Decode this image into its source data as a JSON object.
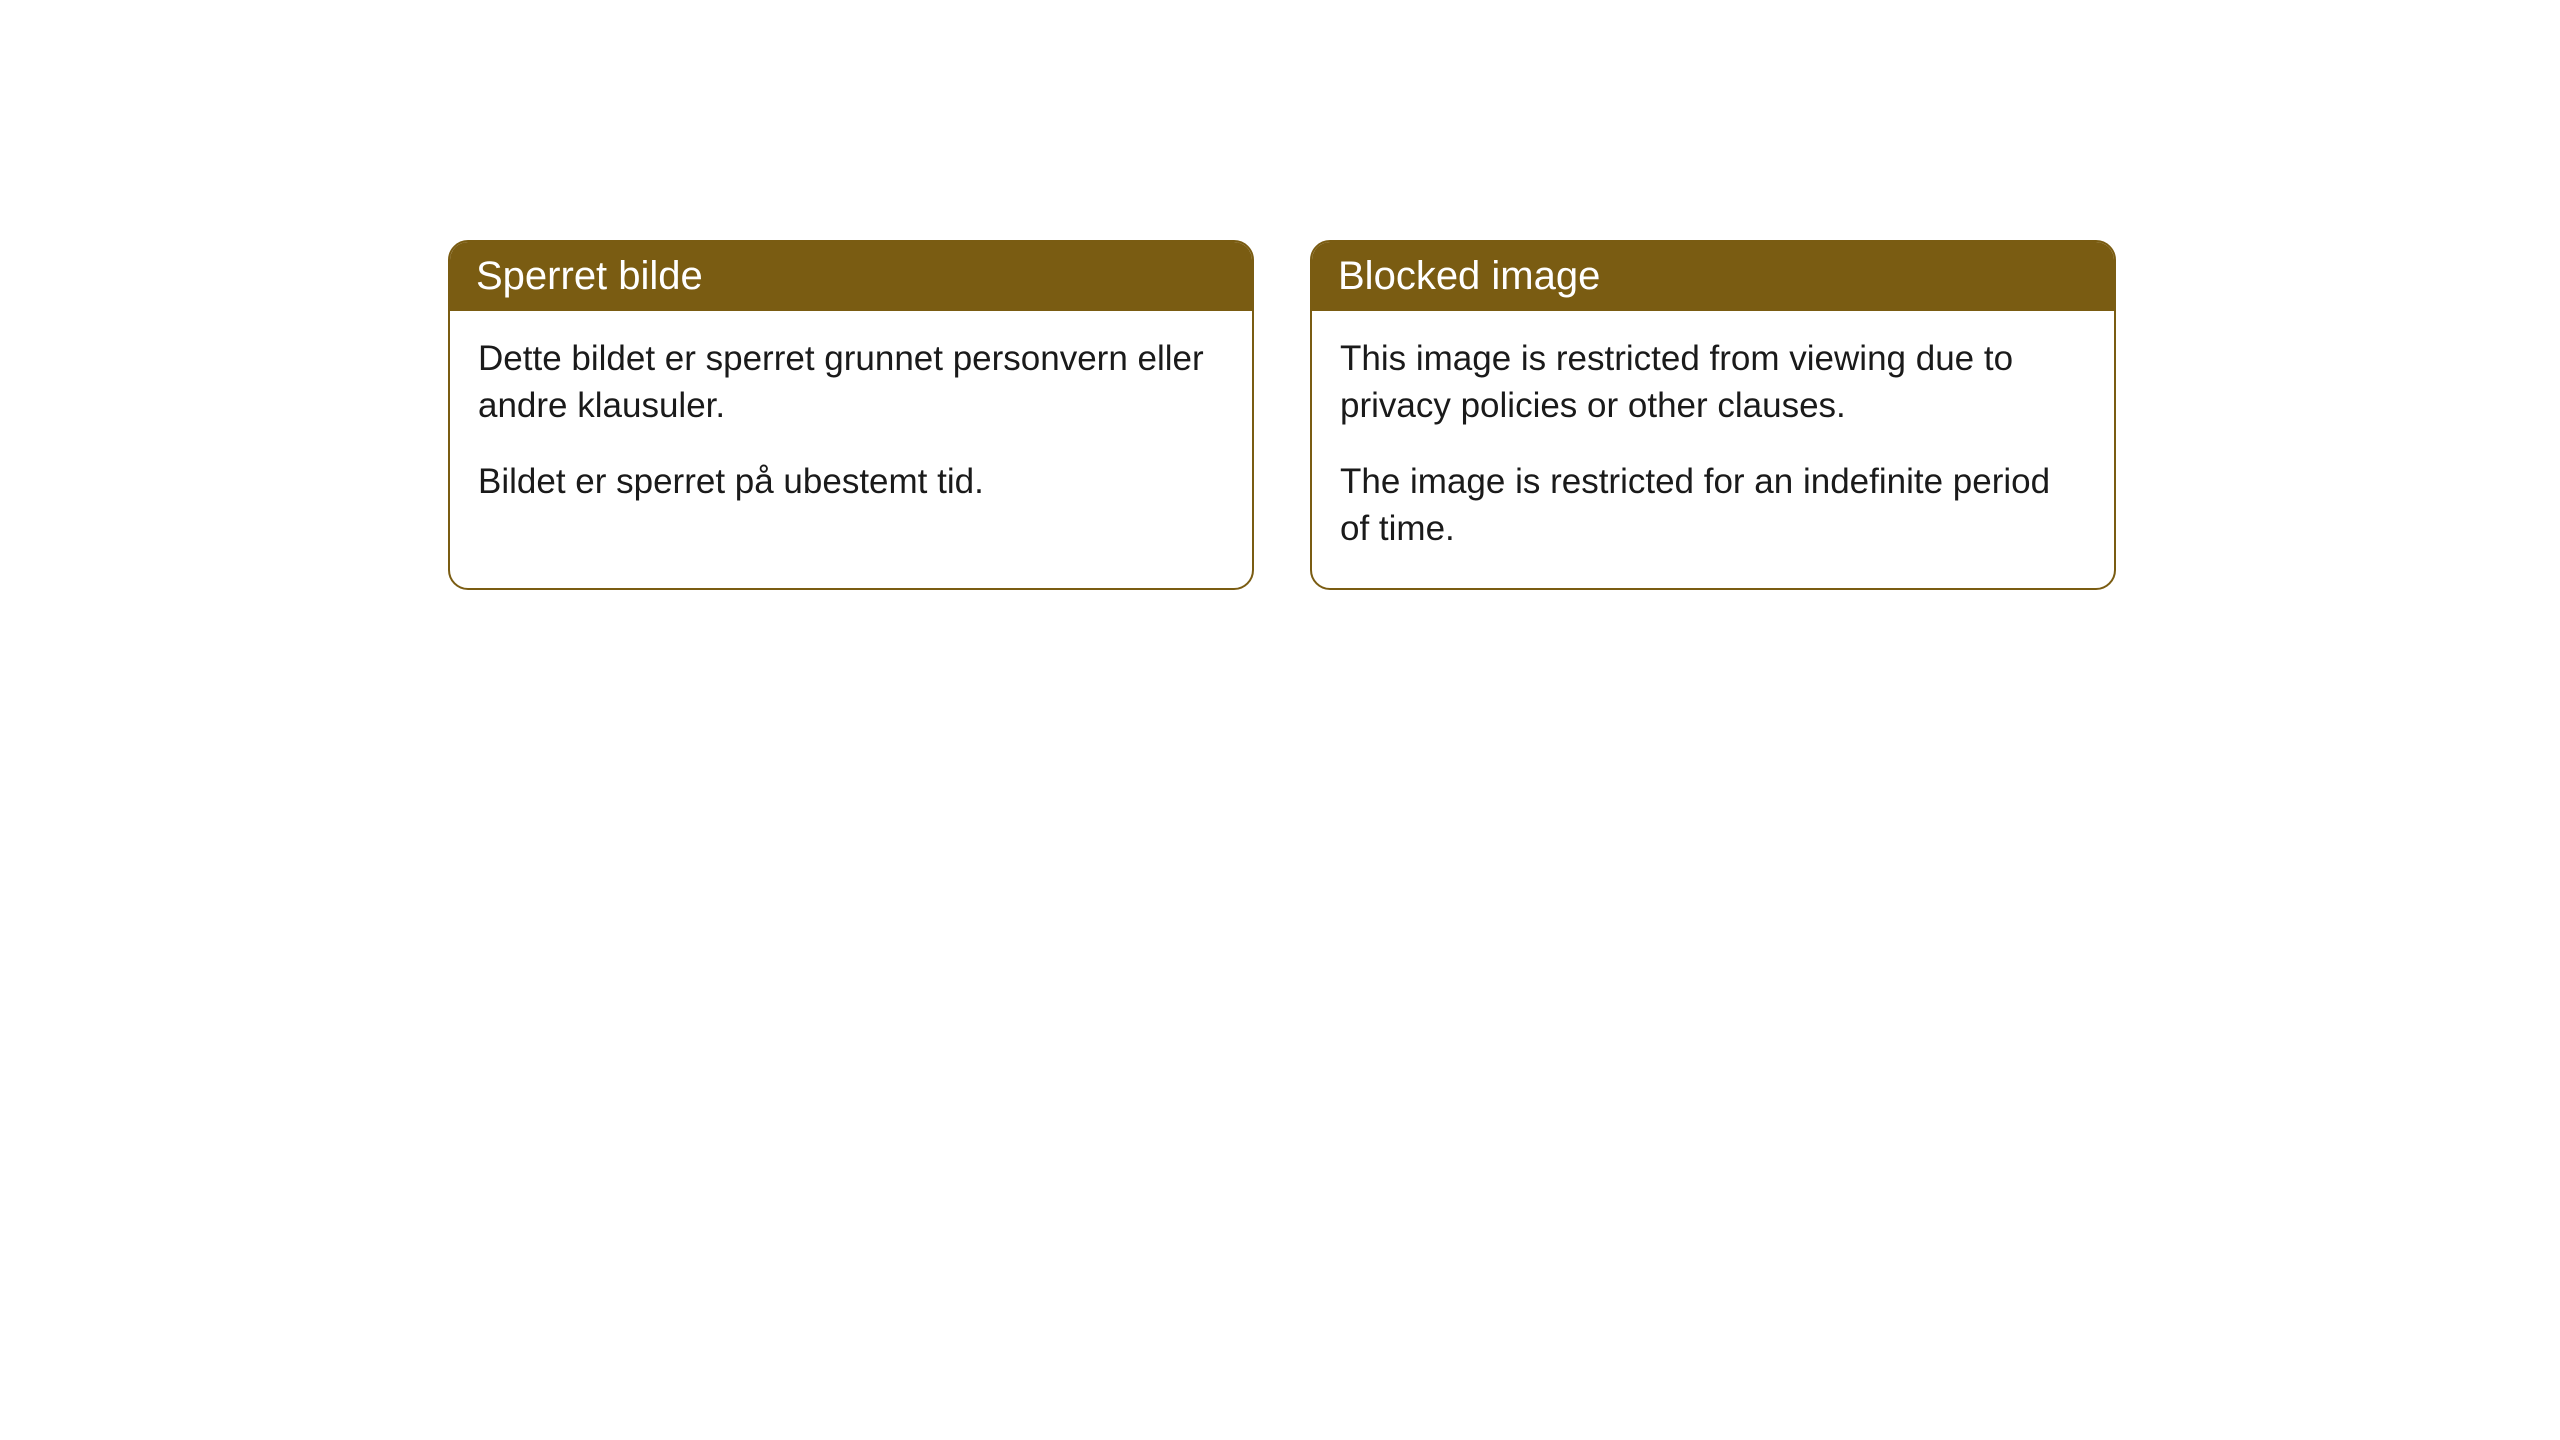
{
  "cards": [
    {
      "title": "Sperret bilde",
      "paragraph1": "Dette bildet er sperret grunnet personvern eller andre klausuler.",
      "paragraph2": "Bildet er sperret på ubestemt tid."
    },
    {
      "title": "Blocked image",
      "paragraph1": "This image is restricted from viewing due to privacy policies or other clauses.",
      "paragraph2": "The image is restricted for an indefinite period of time."
    }
  ],
  "style": {
    "header_bg_color": "#7a5c12",
    "header_text_color": "#ffffff",
    "border_color": "#7a5c12",
    "body_bg_color": "#ffffff",
    "body_text_color": "#1a1a1a",
    "border_radius": 20,
    "title_fontsize": 40,
    "body_fontsize": 35
  }
}
